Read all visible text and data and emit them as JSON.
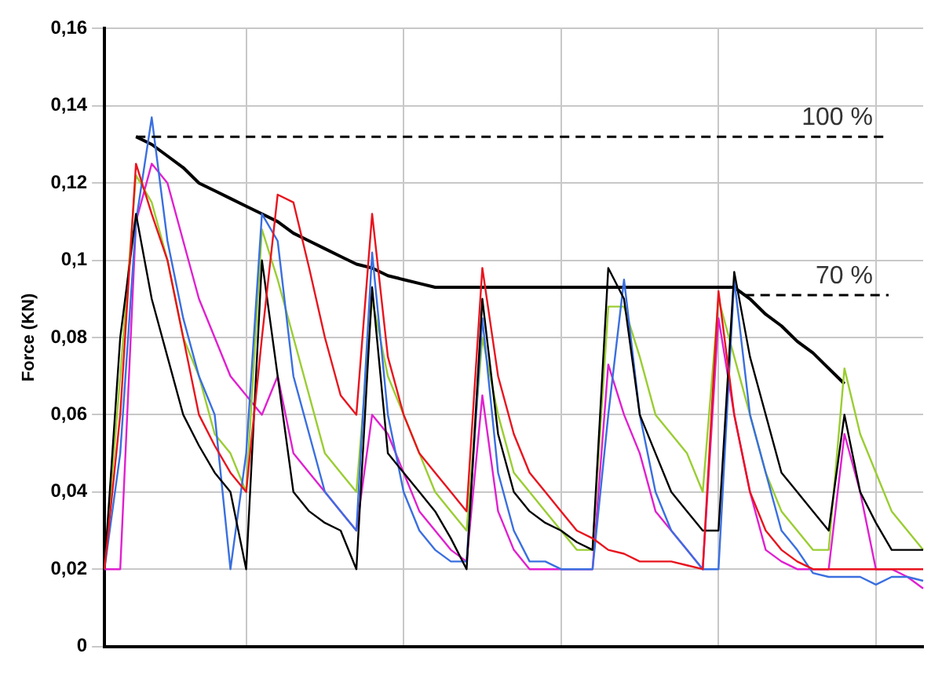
{
  "chart_data": {
    "type": "line",
    "ylabel": "Force (KN)",
    "categories": [
      null,
      null,
      null,
      null,
      null,
      null,
      null,
      null,
      null,
      null,
      null,
      null,
      null,
      null,
      null,
      null,
      null,
      null,
      null,
      null,
      null,
      null,
      null,
      null,
      null,
      null,
      null,
      null,
      null,
      null,
      null,
      null,
      null,
      null,
      null,
      null,
      null,
      null,
      null,
      null,
      null,
      null,
      null,
      null,
      null,
      null,
      null,
      null,
      null,
      null,
      null,
      null,
      null
    ],
    "ylim": [
      0,
      0.16
    ],
    "yticks": [
      {
        "value": 0,
        "label": "0"
      },
      {
        "value": 0.02,
        "label": "0,02"
      },
      {
        "value": 0.04,
        "label": "0,04"
      },
      {
        "value": 0.06,
        "label": "0,06"
      },
      {
        "value": 0.08,
        "label": "0,08"
      },
      {
        "value": 0.1,
        "label": "0,1"
      },
      {
        "value": 0.12,
        "label": "0,12"
      },
      {
        "value": 0.14,
        "label": "0,14"
      },
      {
        "value": 0.16,
        "label": "0,16"
      }
    ],
    "tick_labels": "y",
    "grid": true,
    "legend": false,
    "marker": "none",
    "line_style": "solid",
    "series": [
      {
        "color": "#e8141e",
        "values": [
          0.02,
          0.06,
          0.125,
          0.112,
          0.1,
          0.08,
          0.06,
          0.052,
          0.045,
          0.04,
          0.08,
          0.117,
          0.115,
          0.098,
          0.08,
          0.065,
          0.06,
          0.112,
          0.075,
          0.06,
          0.05,
          0.045,
          0.04,
          0.035,
          0.098,
          0.07,
          0.055,
          0.045,
          0.04,
          0.035,
          0.03,
          0.028,
          0.025,
          0.024,
          0.022,
          0.022,
          0.022,
          0.021,
          0.02,
          0.092,
          0.06,
          0.04,
          0.03,
          0.025,
          0.022,
          0.02,
          0.02,
          0.02,
          0.02,
          0.02,
          0.02,
          0.02,
          0.02
        ]
      },
      {
        "color": "#000000",
        "values": [
          0.02,
          0.08,
          0.112,
          0.09,
          0.075,
          0.06,
          0.052,
          0.045,
          0.04,
          0.02,
          0.1,
          0.07,
          0.04,
          0.035,
          0.032,
          0.03,
          0.02,
          0.093,
          0.05,
          0.045,
          0.04,
          0.035,
          0.028,
          0.02,
          0.09,
          0.055,
          0.04,
          0.035,
          0.032,
          0.03,
          0.027,
          0.025,
          0.098,
          0.09,
          0.06,
          0.05,
          0.04,
          0.035,
          0.03,
          0.03,
          0.097,
          0.075,
          0.06,
          0.045,
          0.04,
          0.035,
          0.03,
          0.06,
          0.04,
          0.032,
          0.025,
          0.025,
          0.025
        ]
      },
      {
        "color": "#3a6fe0",
        "values": [
          0.02,
          0.05,
          0.11,
          0.137,
          0.105,
          0.085,
          0.07,
          0.06,
          0.02,
          0.05,
          0.112,
          0.105,
          0.07,
          0.055,
          0.04,
          0.035,
          0.03,
          0.102,
          0.06,
          0.04,
          0.03,
          0.025,
          0.022,
          0.022,
          0.085,
          0.045,
          0.03,
          0.022,
          0.022,
          0.02,
          0.02,
          0.02,
          0.06,
          0.095,
          0.06,
          0.04,
          0.03,
          0.025,
          0.02,
          0.02,
          0.095,
          0.06,
          0.045,
          0.03,
          0.025,
          0.019,
          0.018,
          0.018,
          0.018,
          0.016,
          0.018,
          0.018,
          0.017
        ]
      },
      {
        "color": "#9acd32",
        "values": [
          0.02,
          0.07,
          0.122,
          0.115,
          0.1,
          0.08,
          0.07,
          0.055,
          0.05,
          0.04,
          0.108,
          0.095,
          0.08,
          0.065,
          0.05,
          0.045,
          0.04,
          0.09,
          0.07,
          0.06,
          0.05,
          0.04,
          0.035,
          0.03,
          0.08,
          0.06,
          0.045,
          0.04,
          0.035,
          0.03,
          0.025,
          0.025,
          0.088,
          0.088,
          0.075,
          0.06,
          0.055,
          0.05,
          0.04,
          0.09,
          0.075,
          0.06,
          0.045,
          0.035,
          0.03,
          0.025,
          0.025,
          0.072,
          0.055,
          0.045,
          0.035,
          0.03,
          0.025
        ]
      },
      {
        "color": "#e020d0",
        "values": [
          0.02,
          0.02,
          0.11,
          0.125,
          0.12,
          0.105,
          0.09,
          0.08,
          0.07,
          0.065,
          0.06,
          0.07,
          0.05,
          0.045,
          0.04,
          0.035,
          0.03,
          0.06,
          0.055,
          0.045,
          0.035,
          0.03,
          0.025,
          0.022,
          0.065,
          0.035,
          0.025,
          0.02,
          0.02,
          0.02,
          0.02,
          0.02,
          0.073,
          0.06,
          0.05,
          0.035,
          0.03,
          0.025,
          0.02,
          0.085,
          0.06,
          0.04,
          0.025,
          0.022,
          0.02,
          0.02,
          0.02,
          0.055,
          0.04,
          0.02,
          0.02,
          0.018,
          0.015
        ]
      },
      {
        "color": "#000000",
        "values": [
          null,
          null,
          0.132,
          0.13,
          0.127,
          0.124,
          0.12,
          0.118,
          0.116,
          0.114,
          0.112,
          0.11,
          0.107,
          0.105,
          0.103,
          0.101,
          0.099,
          0.098,
          0.096,
          0.095,
          0.094,
          0.093,
          0.093,
          0.093,
          0.093,
          0.093,
          0.093,
          0.093,
          0.093,
          0.093,
          0.093,
          0.093,
          0.093,
          0.093,
          0.093,
          0.093,
          0.093,
          0.093,
          0.093,
          0.093,
          0.093,
          0.09,
          0.086,
          0.083,
          0.079,
          0.076,
          0.072,
          0.068,
          null,
          null,
          null,
          null,
          null
        ]
      }
    ],
    "ref_lines": [
      {
        "axis": "y",
        "value": 0.132,
        "color": "#000000",
        "line_style": "dashed"
      },
      {
        "axis": "y",
        "value": 0.091,
        "color": "#000000",
        "line_style": "dashed"
      }
    ],
    "annotations": [
      "100 %",
      "70 %"
    ]
  }
}
